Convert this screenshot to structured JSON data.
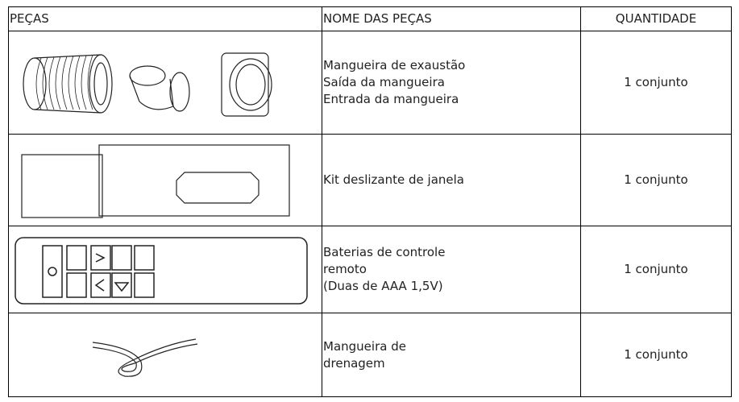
{
  "table": {
    "header": [
      "PEÇAS",
      "NOME DAS PEÇAS",
      "QUANTIDADE"
    ],
    "rows": [
      {
        "name": [
          "Mangueira de exaustão",
          "Saída da mangueira",
          "Entrada da mangueira"
        ],
        "quantity": "1 conjunto"
      },
      {
        "name": [
          "Kit deslizante de janela"
        ],
        "quantity": "1 conjunto"
      },
      {
        "name": [
          "Baterias de controle",
          "remoto",
          "(Duas de AAA 1,5V)"
        ],
        "quantity": "1 conjunto"
      },
      {
        "name": [
          "Mangueira de",
          "drenagem"
        ],
        "quantity": "1 conjunto"
      }
    ]
  }
}
